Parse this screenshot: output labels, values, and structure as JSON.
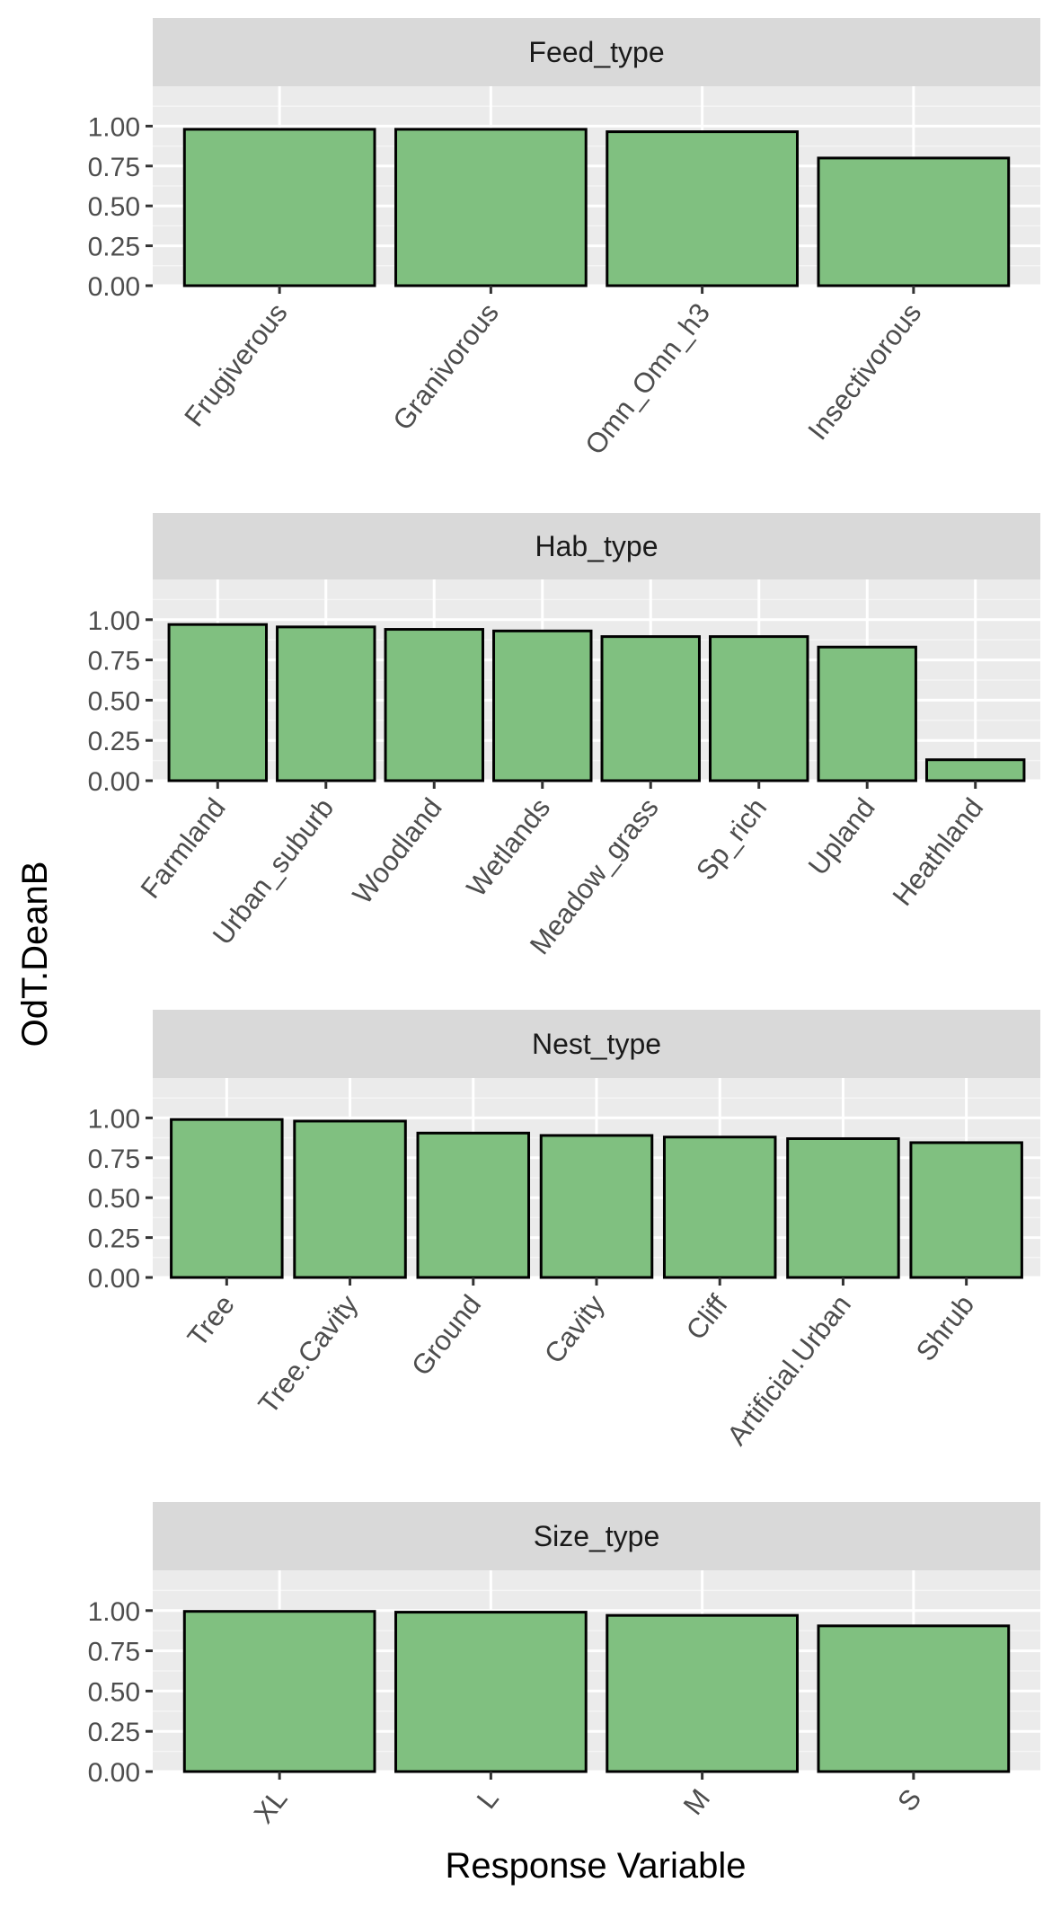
{
  "chart_data": {
    "type": "bar",
    "xlabel": "Response Variable",
    "ylabel": "OdT.DeanB",
    "ylim": [
      0,
      1.25
    ],
    "yticks": [
      "0.00",
      "0.25",
      "0.50",
      "0.75",
      "1.00"
    ],
    "grid": true,
    "bar_fill": "#80c080",
    "bar_stroke": "#000000",
    "panel_bg": "#ebebeb",
    "strip_bg": "#d9d9d9",
    "panels": [
      {
        "title": "Feed_type",
        "categories": [
          "Frugiverous",
          "Granivorous",
          "Omn_Omn_h3",
          "Insectivorous"
        ],
        "values": [
          0.98,
          0.98,
          0.965,
          0.8
        ]
      },
      {
        "title": "Hab_type",
        "categories": [
          "Farmland",
          "Urban_suburb",
          "Woodland",
          "Wetlands",
          "Meadow_grass",
          "Sp_rich",
          "Upland",
          "Heathland"
        ],
        "values": [
          0.97,
          0.955,
          0.94,
          0.93,
          0.895,
          0.895,
          0.83,
          0.13
        ]
      },
      {
        "title": "Nest_type",
        "categories": [
          "Tree",
          "Tree.Cavity",
          "Ground",
          "Cavity",
          "Cliff",
          "Artificial.Urban",
          "Shrub"
        ],
        "values": [
          0.99,
          0.98,
          0.905,
          0.89,
          0.88,
          0.87,
          0.845
        ]
      },
      {
        "title": "Size_type",
        "categories": [
          "XL",
          "L",
          "M",
          "S"
        ],
        "values": [
          0.995,
          0.99,
          0.97,
          0.905
        ]
      }
    ]
  }
}
